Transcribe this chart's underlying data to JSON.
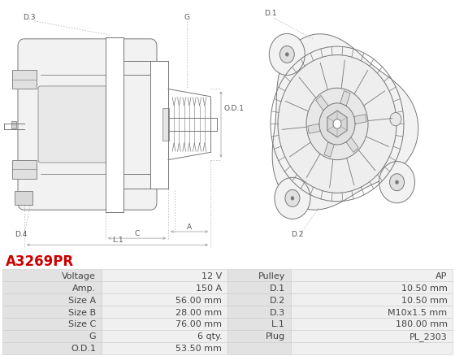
{
  "title": "A3269PR",
  "title_color": "#cc0000",
  "bg_color": "#ffffff",
  "table_rows": [
    [
      "Voltage",
      "12 V",
      "Pulley",
      "AP"
    ],
    [
      "Amp.",
      "150 A",
      "D.1",
      "10.50 mm"
    ],
    [
      "Size A",
      "56.00 mm",
      "D.2",
      "10.50 mm"
    ],
    [
      "Size B",
      "28.00 mm",
      "D.3",
      "M10x1.5 mm"
    ],
    [
      "Size C",
      "76.00 mm",
      "L.1",
      "180.00 mm"
    ],
    [
      "G",
      "6 qty.",
      "Plug",
      "PL_2303"
    ],
    [
      "O.D.1",
      "53.50 mm",
      "",
      ""
    ]
  ],
  "header_bg": "#e2e2e2",
  "row_bg": "#f0f0f0",
  "border_color": "#cccccc",
  "text_color": "#444444",
  "font_size": 8.0,
  "lc": "#888888",
  "lc2": "#aaaaaa"
}
